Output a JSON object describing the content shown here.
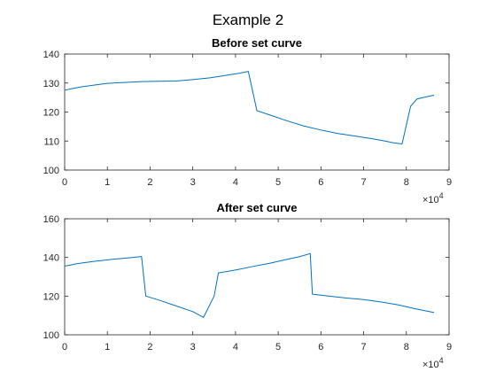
{
  "figure": {
    "suptitle": "Example 2",
    "series_color": "#0072BD"
  },
  "chart_data": [
    {
      "type": "line",
      "title": "Before set curve",
      "xlabel": "",
      "ylabel": "",
      "xlim": [
        0,
        90000
      ],
      "ylim": [
        100,
        140
      ],
      "xticks": [
        0,
        10000,
        20000,
        30000,
        40000,
        50000,
        60000,
        70000,
        80000,
        90000
      ],
      "xtick_labels": [
        "0",
        "1",
        "2",
        "3",
        "4",
        "5",
        "6",
        "7",
        "8",
        "9"
      ],
      "yticks": [
        100,
        110,
        120,
        130,
        140
      ],
      "x_exponent_label": "×10",
      "x_exponent": "4",
      "grid": false,
      "series": [
        {
          "x": [
            0,
            1500,
            4000,
            7000,
            10000,
            14000,
            18000,
            22000,
            26000,
            30000,
            34000,
            38000,
            41000,
            43000,
            45000,
            48000,
            52000,
            56000,
            60000,
            64000,
            68000,
            72000,
            75000,
            77000,
            79000,
            81000,
            82500,
            84500,
            86500
          ],
          "y": [
            127.5,
            128,
            128.7,
            129.3,
            129.9,
            130.2,
            130.5,
            130.6,
            130.7,
            131.2,
            131.8,
            132.7,
            133.4,
            134,
            120.5,
            119,
            117,
            115.2,
            113.8,
            112.6,
            111.7,
            110.8,
            110,
            109.4,
            109,
            122,
            124.5,
            125.2,
            125.8
          ]
        }
      ]
    },
    {
      "type": "line",
      "title": "After set curve",
      "xlabel": "",
      "ylabel": "",
      "xlim": [
        0,
        90000
      ],
      "ylim": [
        100,
        160
      ],
      "xticks": [
        0,
        10000,
        20000,
        30000,
        40000,
        50000,
        60000,
        70000,
        80000,
        90000
      ],
      "xtick_labels": [
        "0",
        "1",
        "2",
        "3",
        "4",
        "5",
        "6",
        "7",
        "8",
        "9"
      ],
      "yticks": [
        100,
        120,
        140,
        160
      ],
      "x_exponent_label": "×10",
      "x_exponent": "4",
      "grid": false,
      "series": [
        {
          "x": [
            0,
            3000,
            7000,
            11000,
            15000,
            18000,
            19000,
            22000,
            26000,
            30000,
            32500,
            35000,
            36000,
            40000,
            44000,
            48000,
            52000,
            55000,
            57500,
            58000,
            62000,
            66000,
            70000,
            74000,
            78000,
            82000,
            86500
          ],
          "y": [
            135.5,
            136.8,
            138,
            139,
            139.8,
            140.5,
            120,
            118,
            115,
            112,
            109,
            120,
            132,
            133.5,
            135.3,
            137,
            139,
            140.4,
            142,
            121,
            120,
            119,
            118.2,
            117,
            115.5,
            113.5,
            111.5
          ]
        }
      ]
    }
  ]
}
